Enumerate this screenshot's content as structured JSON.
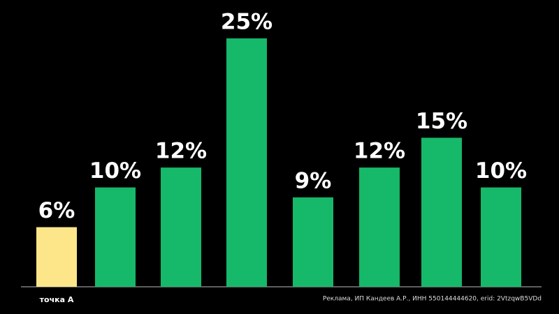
{
  "chart_data": {
    "type": "bar",
    "categories": [
      "точка А",
      null,
      null,
      null,
      null,
      null,
      null,
      null
    ],
    "values": [
      6,
      10,
      12,
      25,
      9,
      12,
      15,
      10
    ],
    "value_labels": [
      "6%",
      "10%",
      "12%",
      "25%",
      "9%",
      "12%",
      "15%",
      "10%"
    ],
    "colors": [
      "#fde68a",
      "#16b869",
      "#16b869",
      "#16b869",
      "#16b869",
      "#16b869",
      "#16b869",
      "#16b869"
    ],
    "annotation": "Реклама, ИП Кандеев А.Р., ИНН 550144444620, erid: 2VtzqwB5VDd"
  }
}
